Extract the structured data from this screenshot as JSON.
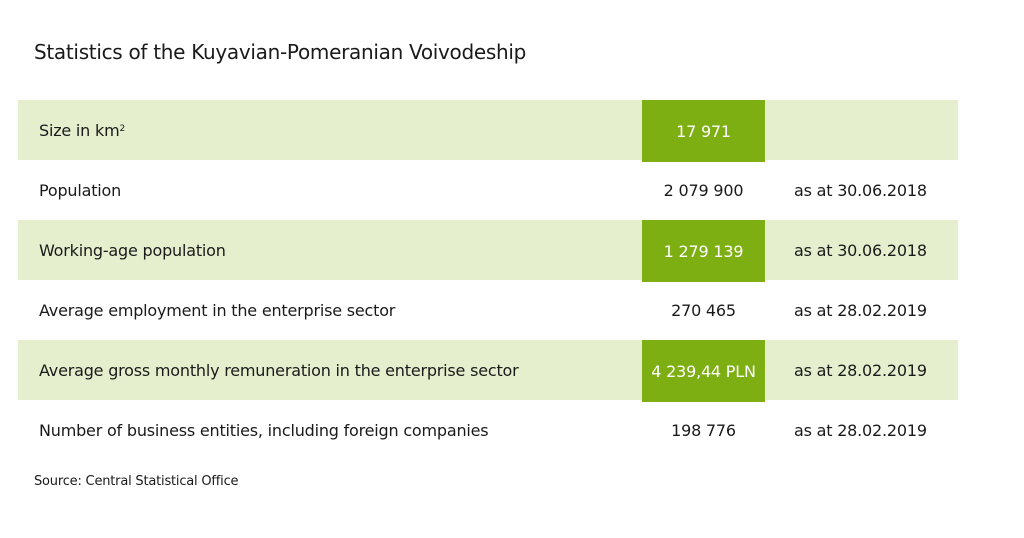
{
  "title": "Statistics of the Kuyavian-Pomeranian Voivodeship",
  "rows": [
    {
      "label": "Size in km²",
      "value": "17 971",
      "date": "",
      "highlight": true,
      "shaded": true
    },
    {
      "label": "Population",
      "value": "2 079 900",
      "date": "as at 30.06.2018",
      "highlight": false,
      "shaded": false
    },
    {
      "label": "Working-age population",
      "value": "1 279 139",
      "date": "as at 30.06.2018",
      "highlight": true,
      "shaded": true
    },
    {
      "label": "Average employment in the enterprise sector",
      "value": "270 465",
      "date": "as at 28.02.2019",
      "highlight": false,
      "shaded": false
    },
    {
      "label": "Average gross monthly remuneration in the enterprise sector",
      "value": "4 239,44 PLN",
      "date": "as at 28.02.2019",
      "highlight": true,
      "shaded": true
    },
    {
      "label": "Number of business entities, including foreign companies",
      "value": "198 776",
      "date": "as at 28.02.2019",
      "highlight": false,
      "shaded": false
    }
  ],
  "source": "Source: Central Statistical Office",
  "colors": {
    "row_shade": "#e5efce",
    "value_highlight": "#7daf12"
  }
}
